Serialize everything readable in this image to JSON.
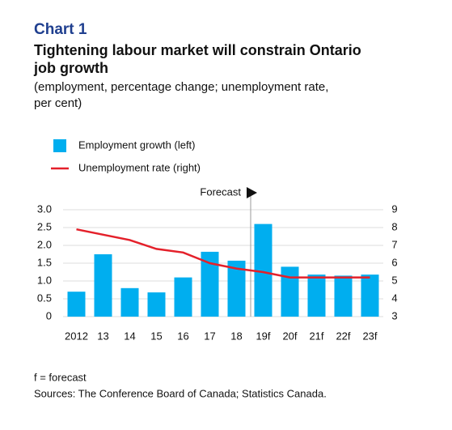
{
  "chart_data": {
    "type": "bar-line",
    "label": "Chart 1",
    "title": [
      "Tightening labour market will constrain Ontario",
      "job growth"
    ],
    "subtitle": [
      "(employment, percentage change; unemployment rate,",
      "per cent)"
    ],
    "annotation": "Forecast",
    "categories": [
      "2012",
      "13",
      "14",
      "15",
      "16",
      "17",
      "18",
      "19f",
      "20f",
      "21f",
      "22f",
      "23f"
    ],
    "series": [
      {
        "name": "Employment growth (left)",
        "color": "#00aeef",
        "type": "bar",
        "values": [
          0.7,
          1.75,
          0.8,
          0.68,
          1.1,
          1.82,
          1.57,
          2.6,
          1.4,
          1.18,
          1.15,
          1.18
        ]
      },
      {
        "name": "Unemployment rate (right)",
        "color": "#e4202a",
        "type": "line",
        "axis": "y2",
        "values": [
          7.9,
          7.6,
          7.3,
          6.8,
          6.6,
          6.0,
          5.7,
          5.5,
          5.2,
          5.2,
          5.2,
          5.2
        ]
      }
    ],
    "ylim": [
      0,
      3
    ],
    "yticks": [
      0,
      0.5,
      {
        "value": 1,
        "label": "1.0"
      },
      1.5,
      {
        "value": 2,
        "label": "2.0"
      },
      2.5,
      {
        "value": 3,
        "label": "3.0"
      }
    ],
    "y2lim": [
      3,
      9
    ],
    "y2ticks": [
      3,
      4,
      5,
      6,
      7,
      8,
      9
    ],
    "grid": true,
    "notes": [
      "f = forecast",
      "Sources: The Conference Board of Canada; Statistics Canada."
    ]
  }
}
